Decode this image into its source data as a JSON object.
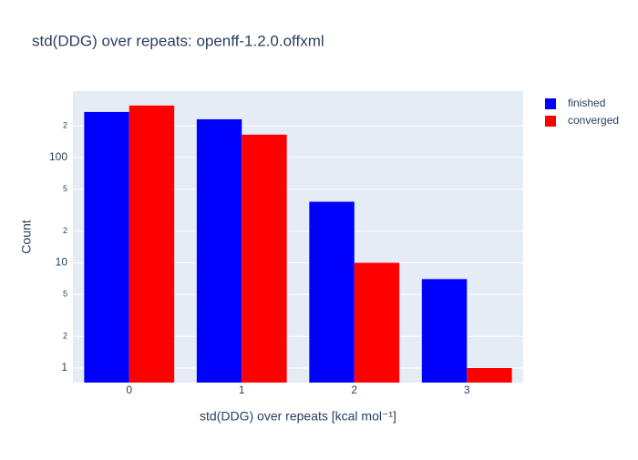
{
  "chart_data": {
    "type": "bar",
    "title": "std(DDG) over repeats: openff-1.2.0.offxml",
    "x_label": "std(DDG) over repeats [kcal mol⁻¹]",
    "y_label": "Count",
    "categories": [
      "0",
      "1",
      "2",
      "3"
    ],
    "series": [
      {
        "name": "finished",
        "color": "#0000ff",
        "values": [
          271,
          231,
          38,
          7
        ]
      },
      {
        "name": "converged",
        "color": "#ff0000",
        "values": [
          312,
          165,
          10,
          1
        ]
      }
    ],
    "log_y": true,
    "ylim": [
      0.727,
      428
    ],
    "yticks": [
      1,
      {
        "value": 2,
        "label": "2"
      },
      {
        "value": 5,
        "label": "5"
      },
      10,
      {
        "value": 20,
        "label": "2"
      },
      {
        "value": 50,
        "label": "5"
      },
      100,
      {
        "value": 200,
        "label": "2"
      }
    ],
    "grid": true,
    "legend": "outside-right"
  }
}
